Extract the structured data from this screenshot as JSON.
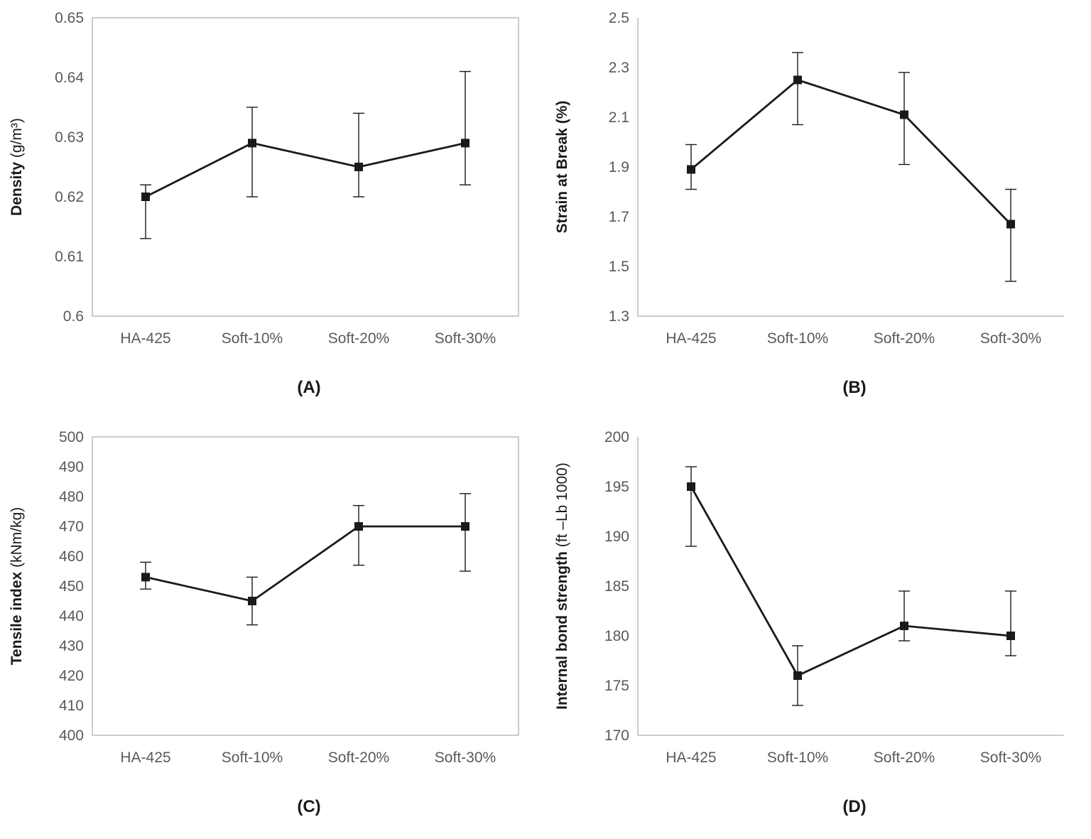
{
  "style": {
    "line_color": "#1a1a1a",
    "tick_color": "#595959",
    "frame_color": "#9a9a9a",
    "background": "#ffffff"
  },
  "chart_data": [
    {
      "id": "A",
      "type": "line",
      "caption": "(A)",
      "ylabel_bold": "Density",
      "ylabel_unit": "(g/m³)",
      "unit_bold": false,
      "categories": [
        "HA-425",
        "Soft-10%",
        "Soft-20%",
        "Soft-30%"
      ],
      "values": [
        0.62,
        0.629,
        0.625,
        0.629
      ],
      "error_low": [
        0.613,
        0.62,
        0.62,
        0.622
      ],
      "error_high": [
        0.622,
        0.635,
        0.634,
        0.641
      ],
      "ylim": [
        0.6,
        0.65
      ],
      "ytick_labels": [
        "0.6",
        "0.61",
        "0.62",
        "0.63",
        "0.64",
        "0.65"
      ],
      "frame": "box",
      "grid": false,
      "marker": "square",
      "legend": "none"
    },
    {
      "id": "B",
      "type": "line",
      "caption": "(B)",
      "ylabel_bold": "Strain at Break",
      "ylabel_unit": "(%)",
      "unit_bold": true,
      "categories": [
        "HA-425",
        "Soft-10%",
        "Soft-20%",
        "Soft-30%"
      ],
      "values": [
        1.89,
        2.25,
        2.11,
        1.67
      ],
      "error_low": [
        1.81,
        2.07,
        1.91,
        1.44
      ],
      "error_high": [
        1.99,
        2.36,
        2.28,
        1.81
      ],
      "ylim": [
        1.3,
        2.5
      ],
      "ytick_labels": [
        "1.3",
        "1.5",
        "1.7",
        "1.9",
        "2.1",
        "2.3",
        "2.5"
      ],
      "frame": "axes",
      "grid": false,
      "marker": "square",
      "legend": "none"
    },
    {
      "id": "C",
      "type": "line",
      "caption": "(C)",
      "ylabel_bold": "Tensile index",
      "ylabel_unit": "(kNm/kg)",
      "unit_bold": false,
      "categories": [
        "HA-425",
        "Soft-10%",
        "Soft-20%",
        "Soft-30%"
      ],
      "values": [
        453,
        445,
        470,
        470
      ],
      "error_low": [
        449,
        437,
        457,
        455
      ],
      "error_high": [
        458,
        453,
        477,
        481
      ],
      "ylim": [
        400,
        500
      ],
      "ytick_labels": [
        "400",
        "410",
        "420",
        "430",
        "440",
        "450",
        "460",
        "470",
        "480",
        "490",
        "500"
      ],
      "frame": "box",
      "grid": false,
      "marker": "square",
      "legend": "none"
    },
    {
      "id": "D",
      "type": "line",
      "caption": "(D)",
      "ylabel_bold": "Internal bond strength",
      "ylabel_unit": "(ft –Lb 1000)",
      "unit_bold": false,
      "categories": [
        "HA-425",
        "Soft-10%",
        "Soft-20%",
        "Soft-30%"
      ],
      "values": [
        195,
        176,
        181,
        180
      ],
      "error_low": [
        189,
        173,
        179.5,
        178
      ],
      "error_high": [
        197,
        179,
        184.5,
        184.5
      ],
      "ylim": [
        170,
        200
      ],
      "ytick_labels": [
        "170",
        "175",
        "180",
        "185",
        "190",
        "195",
        "200"
      ],
      "frame": "axes",
      "grid": false,
      "marker": "square",
      "legend": "none"
    }
  ]
}
